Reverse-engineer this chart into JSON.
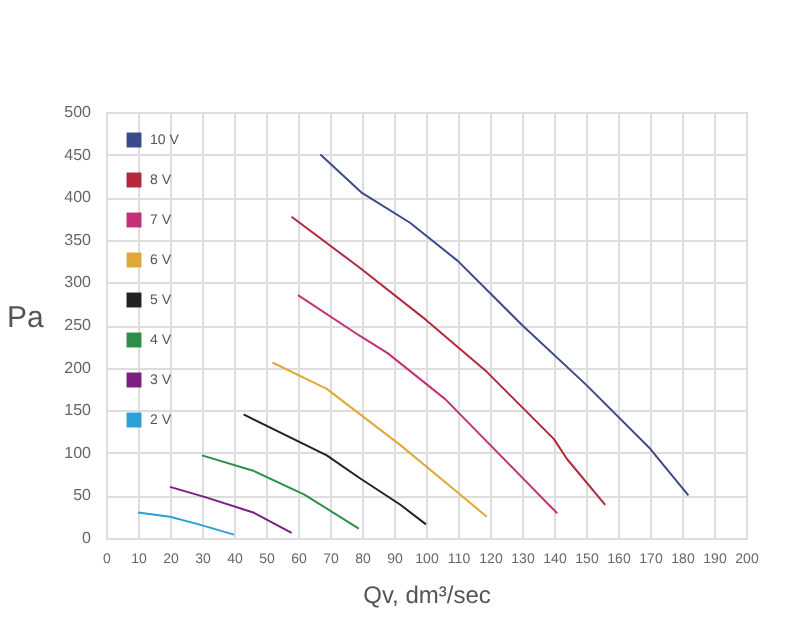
{
  "chart_data": {
    "type": "line",
    "xlabel": "Qv, dm³/sec",
    "ylabel": "Pa",
    "xlim": [
      0,
      200
    ],
    "xticks": [
      0,
      10,
      20,
      30,
      40,
      50,
      60,
      70,
      80,
      90,
      100,
      110,
      120,
      130,
      140,
      150,
      160,
      170,
      180,
      190,
      200
    ],
    "ylim": [
      0,
      500
    ],
    "yticks": [
      0,
      50,
      100,
      150,
      200,
      250,
      300,
      350,
      400,
      450,
      500
    ],
    "grid": true,
    "legend": "top left",
    "marker": "none",
    "line_style": "solid",
    "series": [
      {
        "name": "10 V",
        "color": "#3a4a8c",
        "x": [
          67,
          80,
          95,
          110,
          130,
          150,
          170,
          182
        ],
        "values": [
          450,
          405,
          370,
          325,
          250,
          180,
          105,
          50
        ]
      },
      {
        "name": "8 V",
        "color": "#b5283c",
        "x": [
          58,
          79,
          100,
          119,
          140,
          144,
          156
        ],
        "values": [
          377,
          318,
          256,
          195,
          116,
          93,
          39
        ]
      },
      {
        "name": "7 V",
        "color": "#c2307a",
        "x": [
          60,
          79,
          88,
          106,
          141
        ],
        "values": [
          285,
          238,
          217,
          163,
          29
        ]
      },
      {
        "name": "6 V",
        "color": "#e0a838",
        "x": [
          52,
          69,
          92,
          110,
          119
        ],
        "values": [
          206,
          175,
          109,
          53,
          25
        ]
      },
      {
        "name": "5 V",
        "color": "#222222",
        "x": [
          43,
          69,
          79,
          92,
          100
        ],
        "values": [
          145,
          97,
          71,
          39,
          16
        ]
      },
      {
        "name": "4 V",
        "color": "#2e8f48",
        "x": [
          30,
          46,
          62,
          79
        ],
        "values": [
          97,
          79,
          51,
          11
        ]
      },
      {
        "name": "3 V",
        "color": "#7b2080",
        "x": [
          20,
          31,
          46,
          58
        ],
        "values": [
          60,
          48,
          30,
          6
        ]
      },
      {
        "name": "2 V",
        "color": "#2aa0d8",
        "x": [
          10,
          20,
          29,
          40
        ],
        "values": [
          30,
          25,
          16,
          4
        ]
      }
    ]
  }
}
